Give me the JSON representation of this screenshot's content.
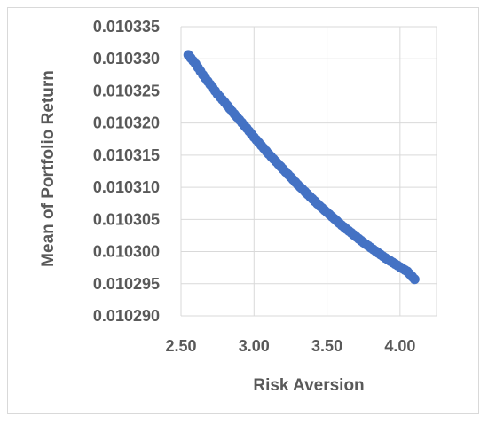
{
  "chart_data": {
    "type": "scatter",
    "xlabel": "Risk Aversion",
    "ylabel": "Mean of Portfolio Return",
    "xlim": [
      2.5,
      4.25
    ],
    "ylim": [
      0.01029,
      0.010335
    ],
    "x_ticks": [
      "2.50",
      "3.00",
      "3.50",
      "4.00"
    ],
    "x_tick_values": [
      2.5,
      3.0,
      3.5,
      4.0
    ],
    "y_ticks": [
      "0.010290",
      "0.010295",
      "0.010300",
      "0.010305",
      "0.010310",
      "0.010315",
      "0.010320",
      "0.010325",
      "0.010330",
      "0.010335"
    ],
    "y_tick_values": [
      0.01029,
      0.010295,
      0.0103,
      0.010305,
      0.01031,
      0.010315,
      0.01032,
      0.010325,
      0.01033,
      0.010335
    ],
    "grid": true,
    "marker_color": "#4472c4",
    "series": [
      {
        "x": [
          2.55,
          2.6,
          2.65,
          2.7,
          2.75,
          2.8,
          2.85,
          2.9,
          2.95,
          3.0,
          3.05,
          3.1,
          3.15,
          3.2,
          3.25,
          3.3,
          3.35,
          3.4,
          3.45,
          3.5,
          3.55,
          3.6,
          3.65,
          3.7,
          3.75,
          3.8,
          3.85,
          3.9,
          3.95,
          4.0,
          4.05,
          4.1
        ],
        "y": [
          0.0103306,
          0.0103292,
          0.0103275,
          0.010326,
          0.0103245,
          0.0103232,
          0.0103218,
          0.0103205,
          0.0103192,
          0.0103178,
          0.0103165,
          0.0103152,
          0.010314,
          0.0103128,
          0.0103116,
          0.0103104,
          0.0103093,
          0.0103082,
          0.0103071,
          0.0103061,
          0.0103051,
          0.0103041,
          0.0103032,
          0.0103023,
          0.0103014,
          0.0103006,
          0.0102998,
          0.010299,
          0.0102983,
          0.0102976,
          0.0102969,
          0.0102957
        ]
      }
    ]
  }
}
